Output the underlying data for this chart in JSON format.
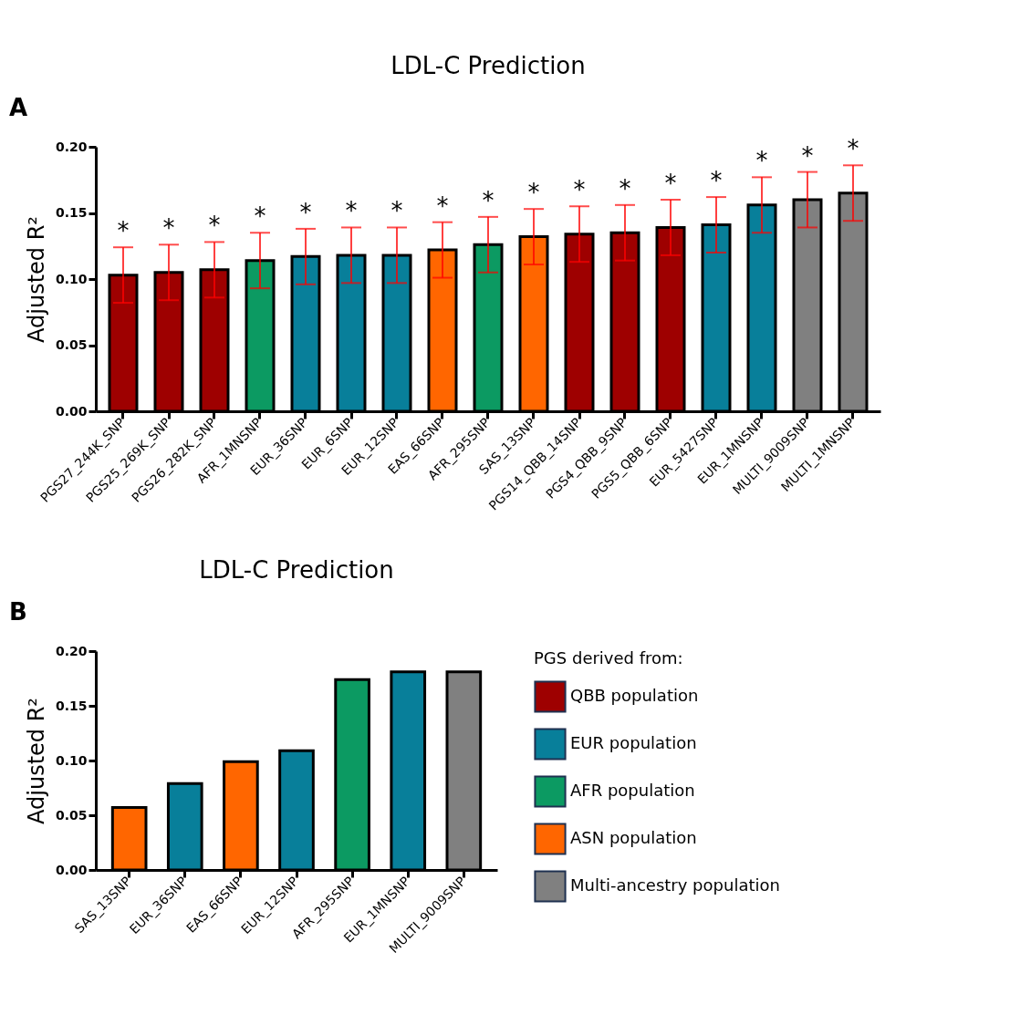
{
  "chart_data": [
    {
      "type": "bar",
      "title": "LDL-C Prediction",
      "ylabel": "Adjusted R²",
      "annotations": [
        "A"
      ],
      "categories": [
        "PGS27_244K_SNP",
        "PGS25_269K_SNP",
        "PGS26_282K_SNP",
        "AFR_1MNSNP",
        "EUR_36SNP",
        "EUR_6SNP",
        "EUR_12SNP",
        "EAS_66SNP",
        "AFR_295SNP",
        "SAS_13SNP",
        "PGS14_QBB_14SNP",
        "PGS4_QBB_9SNP",
        "PGS5_QBB_6SNP",
        "EUR_5427SNP",
        "EUR_1MNSNP",
        "MULTI_9009SNP",
        "MULTI_1MNSNP"
      ],
      "values": [
        0.103,
        0.105,
        0.107,
        0.114,
        0.117,
        0.118,
        0.118,
        0.122,
        0.126,
        0.132,
        0.134,
        0.135,
        0.139,
        0.141,
        0.156,
        0.16,
        0.165
      ],
      "errors": [
        0.021,
        0.021,
        0.021,
        0.021,
        0.021,
        0.021,
        0.021,
        0.021,
        0.021,
        0.021,
        0.021,
        0.021,
        0.021,
        0.021,
        0.021,
        0.021,
        0.021
      ],
      "colors": [
        "#9e0000",
        "#9e0000",
        "#9e0000",
        "#0c9a62",
        "#087f9a",
        "#087f9a",
        "#087f9a",
        "#ff6600",
        "#0c9a62",
        "#ff6600",
        "#9e0000",
        "#9e0000",
        "#9e0000",
        "#087f9a",
        "#087f9a",
        "#808080",
        "#808080"
      ],
      "value_labels": [
        "*",
        "*",
        "*",
        "*",
        "*",
        "*",
        "*",
        "*",
        "*",
        "*",
        "*",
        "*",
        "*",
        "*",
        "*",
        "*",
        "*"
      ],
      "ylim": [
        0,
        0.2
      ],
      "yticks": [
        {
          "value": 0,
          "label": "0.00"
        },
        {
          "value": 0.05,
          "label": "0.05"
        },
        {
          "value": 0.1,
          "label": "0.10"
        },
        {
          "value": 0.15,
          "label": "0.15"
        },
        {
          "value": 0.2,
          "label": "0.20"
        }
      ],
      "grid": false
    },
    {
      "type": "bar",
      "title": "LDL-C Prediction",
      "ylabel": "Adjusted R²",
      "annotations": [
        "B"
      ],
      "legend_title": "PGS derived from:",
      "categories": [
        "SAS_13SNP",
        "EUR_36SNP",
        "EAS_66SNP",
        "EUR_12SNP",
        "AFR_295SNP",
        "EUR_1MNSNP",
        "MULTI_9009SNP"
      ],
      "series": [
        {
          "name": "QBB population",
          "color": "#9e0000",
          "values": [
            null,
            null,
            null,
            null,
            null,
            null,
            null
          ]
        },
        {
          "name": "EUR population",
          "color": "#087f9a",
          "values": [
            null,
            0.079,
            null,
            0.109,
            null,
            0.181,
            null
          ]
        },
        {
          "name": "AFR population",
          "color": "#0c9a62",
          "values": [
            null,
            null,
            null,
            null,
            0.174,
            null,
            null
          ]
        },
        {
          "name": "ASN population",
          "color": "#ff6600",
          "values": [
            0.057,
            null,
            0.099,
            null,
            null,
            null,
            null
          ]
        },
        {
          "name": "Multi-ancestry population",
          "color": "#808080",
          "values": [
            null,
            null,
            null,
            null,
            null,
            null,
            0.181
          ]
        }
      ],
      "ylim": [
        0,
        0.2
      ],
      "yticks": [
        {
          "value": 0,
          "label": "0.00"
        },
        {
          "value": 0.05,
          "label": "0.05"
        },
        {
          "value": 0.1,
          "label": "0.10"
        },
        {
          "value": 0.15,
          "label": "0.15"
        },
        {
          "value": 0.2,
          "label": "0.20"
        }
      ],
      "grid": false,
      "legend": "right"
    }
  ]
}
